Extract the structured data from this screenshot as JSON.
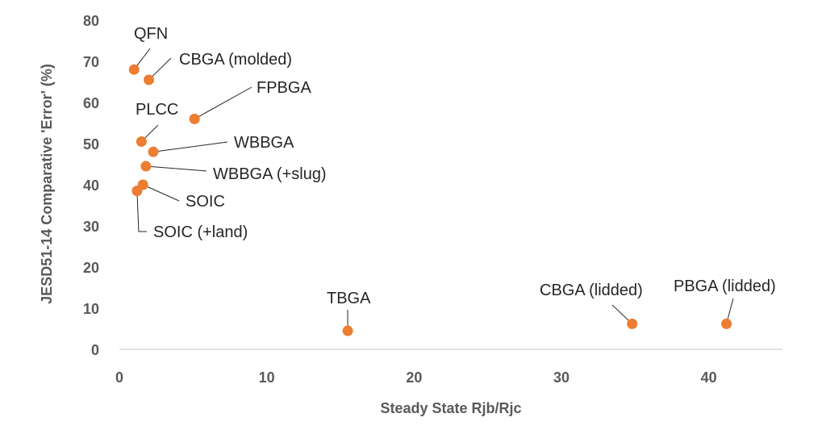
{
  "chart_data": {
    "type": "scatter",
    "title": "",
    "xlabel": "Steady State Rjb/Rjc",
    "ylabel": "JESD51-14 Comparative 'Error' (%)",
    "xlim": [
      0,
      45
    ],
    "ylim": [
      0,
      80
    ],
    "xticks": [
      0,
      10,
      20,
      30,
      40
    ],
    "yticks": [
      0,
      10,
      20,
      30,
      40,
      50,
      60,
      70,
      80
    ],
    "grid": false,
    "legend": "none",
    "marker_color": "#ED7D31",
    "points": [
      {
        "label": "QFN",
        "x": 1.0,
        "y": 68
      },
      {
        "label": "CBGA (molded)",
        "x": 2.0,
        "y": 65.5
      },
      {
        "label": "FPBGA",
        "x": 5.1,
        "y": 56
      },
      {
        "label": "PLCC",
        "x": 1.5,
        "y": 50.5
      },
      {
        "label": "WBBGA",
        "x": 2.3,
        "y": 48
      },
      {
        "label": "WBBGA (+slug)",
        "x": 1.8,
        "y": 44.5
      },
      {
        "label": "SOIC",
        "x": 1.6,
        "y": 40
      },
      {
        "label": "SOIC (+land)",
        "x": 1.2,
        "y": 38.5
      },
      {
        "label": "TBGA",
        "x": 15.5,
        "y": 4.5
      },
      {
        "label": "CBGA (lidded)",
        "x": 34.8,
        "y": 6.2
      },
      {
        "label": "PBGA (lidded)",
        "x": 41.2,
        "y": 6.2
      }
    ]
  }
}
